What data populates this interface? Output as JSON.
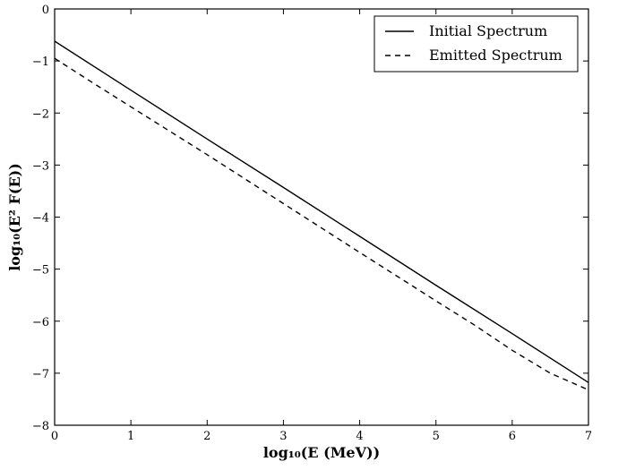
{
  "chart_data": {
    "type": "line",
    "xlabel": "log₁₀(E (MeV))",
    "ylabel": "log₁₀(E² F(E))",
    "xlim": [
      0,
      7
    ],
    "ylim": [
      -8,
      0
    ],
    "x_ticks": [
      "0",
      "1",
      "2",
      "3",
      "4",
      "5",
      "6",
      "7"
    ],
    "y_ticks": [
      "0",
      "−1",
      "−2",
      "−3",
      "−4",
      "−5",
      "−6",
      "−7",
      "−8"
    ],
    "grid": false,
    "legend_position": "top-right",
    "series": [
      {
        "name": "Initial Spectrum",
        "style": "solid",
        "color": "#000000",
        "x": [
          0,
          1,
          2,
          3,
          4,
          5,
          6,
          7
        ],
        "y": [
          -0.62,
          -1.56,
          -2.5,
          -3.43,
          -4.37,
          -5.31,
          -6.24,
          -7.18
        ]
      },
      {
        "name": "Emitted Spectrum",
        "style": "dashed",
        "color": "#000000",
        "x": [
          0,
          0.5,
          1,
          2,
          3,
          4,
          5,
          5.5,
          6,
          6.5,
          7
        ],
        "y": [
          -0.95,
          -1.42,
          -1.88,
          -2.8,
          -3.74,
          -4.68,
          -5.61,
          -6.07,
          -6.56,
          -7.0,
          -7.32
        ]
      }
    ]
  }
}
